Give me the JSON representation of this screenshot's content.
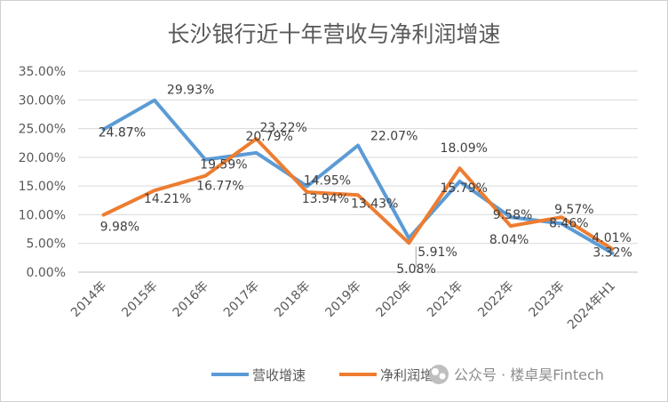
{
  "chart_data": {
    "type": "line",
    "title": "长沙银行近十年营收与净利润增速",
    "categories": [
      "2014年",
      "2015年",
      "2016年",
      "2017年",
      "2018年",
      "2019年",
      "2020年",
      "2021年",
      "2022年",
      "2023年",
      "2024年H1"
    ],
    "y_ticks": [
      "35.00%",
      "30.00%",
      "25.00%",
      "20.00%",
      "15.00%",
      "10.00%",
      "5.00%",
      "0.00%"
    ],
    "ylim": [
      0,
      35
    ],
    "grid": true,
    "legend_position": "bottom",
    "series": [
      {
        "name": "营收增速",
        "color": "#5b9bd5",
        "values": [
          24.87,
          29.93,
          19.59,
          20.79,
          14.95,
          22.07,
          5.91,
          15.79,
          9.58,
          8.46,
          3.32
        ],
        "labels": [
          "24.87%",
          "29.93%",
          "19.59%",
          "20.79%",
          "14.95%",
          "22.07%",
          "5.91%",
          "15.79%",
          "9.58%",
          "8.46%",
          "3.32%"
        ]
      },
      {
        "name": "净利润增速",
        "color": "#ed7d31",
        "values": [
          9.98,
          14.21,
          16.77,
          23.22,
          13.94,
          13.43,
          5.08,
          18.09,
          8.04,
          9.57,
          4.01
        ],
        "labels": [
          "9.98%",
          "14.21%",
          "16.77%",
          "23.22%",
          "13.94%",
          "13.43%",
          "5.08%",
          "18.09%",
          "8.04%",
          "9.57%",
          "4.01%"
        ]
      }
    ]
  },
  "watermark": "公众号 · 楼卓昊Fintech"
}
